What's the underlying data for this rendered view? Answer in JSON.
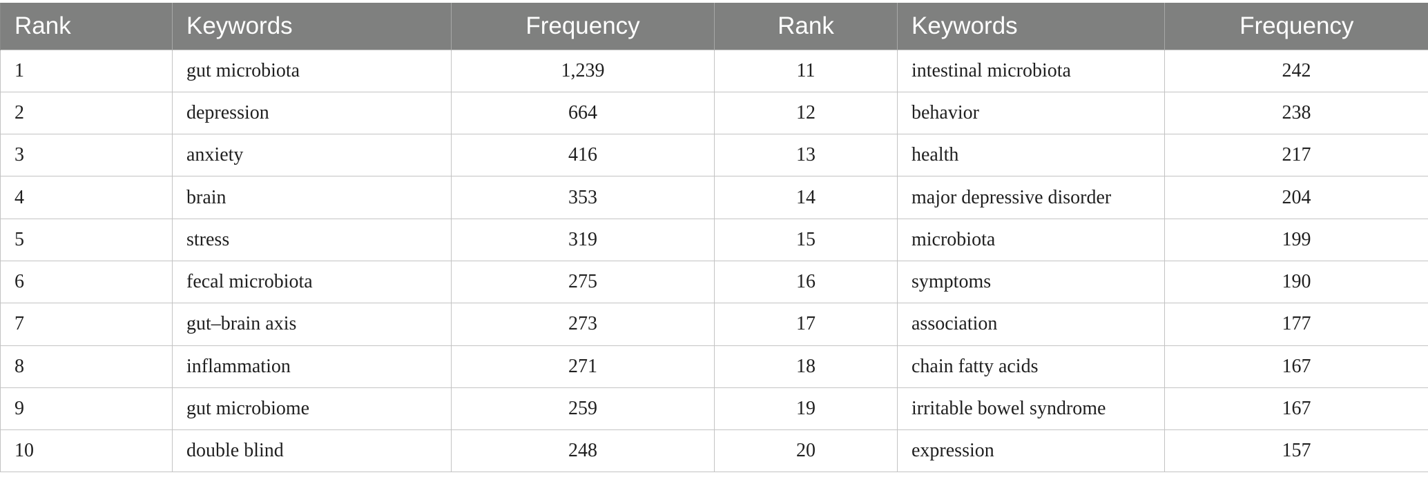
{
  "headers": {
    "rank_left": "Rank",
    "keywords_left": "Keywords",
    "frequency_left": "Frequency",
    "rank_right": "Rank",
    "keywords_right": "Keywords",
    "frequency_right": "Frequency"
  },
  "rows": [
    {
      "rank_l": "1",
      "kw_l": "gut microbiota",
      "freq_l": "1,239",
      "rank_r": "11",
      "kw_r": "intestinal microbiota",
      "freq_r": "242"
    },
    {
      "rank_l": "2",
      "kw_l": "depression",
      "freq_l": "664",
      "rank_r": "12",
      "kw_r": "behavior",
      "freq_r": "238"
    },
    {
      "rank_l": "3",
      "kw_l": "anxiety",
      "freq_l": "416",
      "rank_r": "13",
      "kw_r": "health",
      "freq_r": "217"
    },
    {
      "rank_l": "4",
      "kw_l": "brain",
      "freq_l": "353",
      "rank_r": "14",
      "kw_r": "major depressive disorder",
      "freq_r": "204"
    },
    {
      "rank_l": "5",
      "kw_l": "stress",
      "freq_l": "319",
      "rank_r": "15",
      "kw_r": "microbiota",
      "freq_r": "199"
    },
    {
      "rank_l": "6",
      "kw_l": "fecal microbiota",
      "freq_l": "275",
      "rank_r": "16",
      "kw_r": "symptoms",
      "freq_r": "190"
    },
    {
      "rank_l": "7",
      "kw_l": "gut–brain axis",
      "freq_l": "273",
      "rank_r": "17",
      "kw_r": "association",
      "freq_r": "177"
    },
    {
      "rank_l": "8",
      "kw_l": "inflammation",
      "freq_l": "271",
      "rank_r": "18",
      "kw_r": "chain fatty acids",
      "freq_r": "167"
    },
    {
      "rank_l": "9",
      "kw_l": "gut microbiome",
      "freq_l": "259",
      "rank_r": "19",
      "kw_r": "irritable bowel syndrome",
      "freq_r": "167"
    },
    {
      "rank_l": "10",
      "kw_l": "double blind",
      "freq_l": "248",
      "rank_r": "20",
      "kw_r": "expression",
      "freq_r": "157"
    }
  ],
  "colors": {
    "header_bg": "#7f807f",
    "header_text": "#ffffff",
    "grid_line": "#c3c3c3",
    "body_text": "#1f1f1f"
  }
}
